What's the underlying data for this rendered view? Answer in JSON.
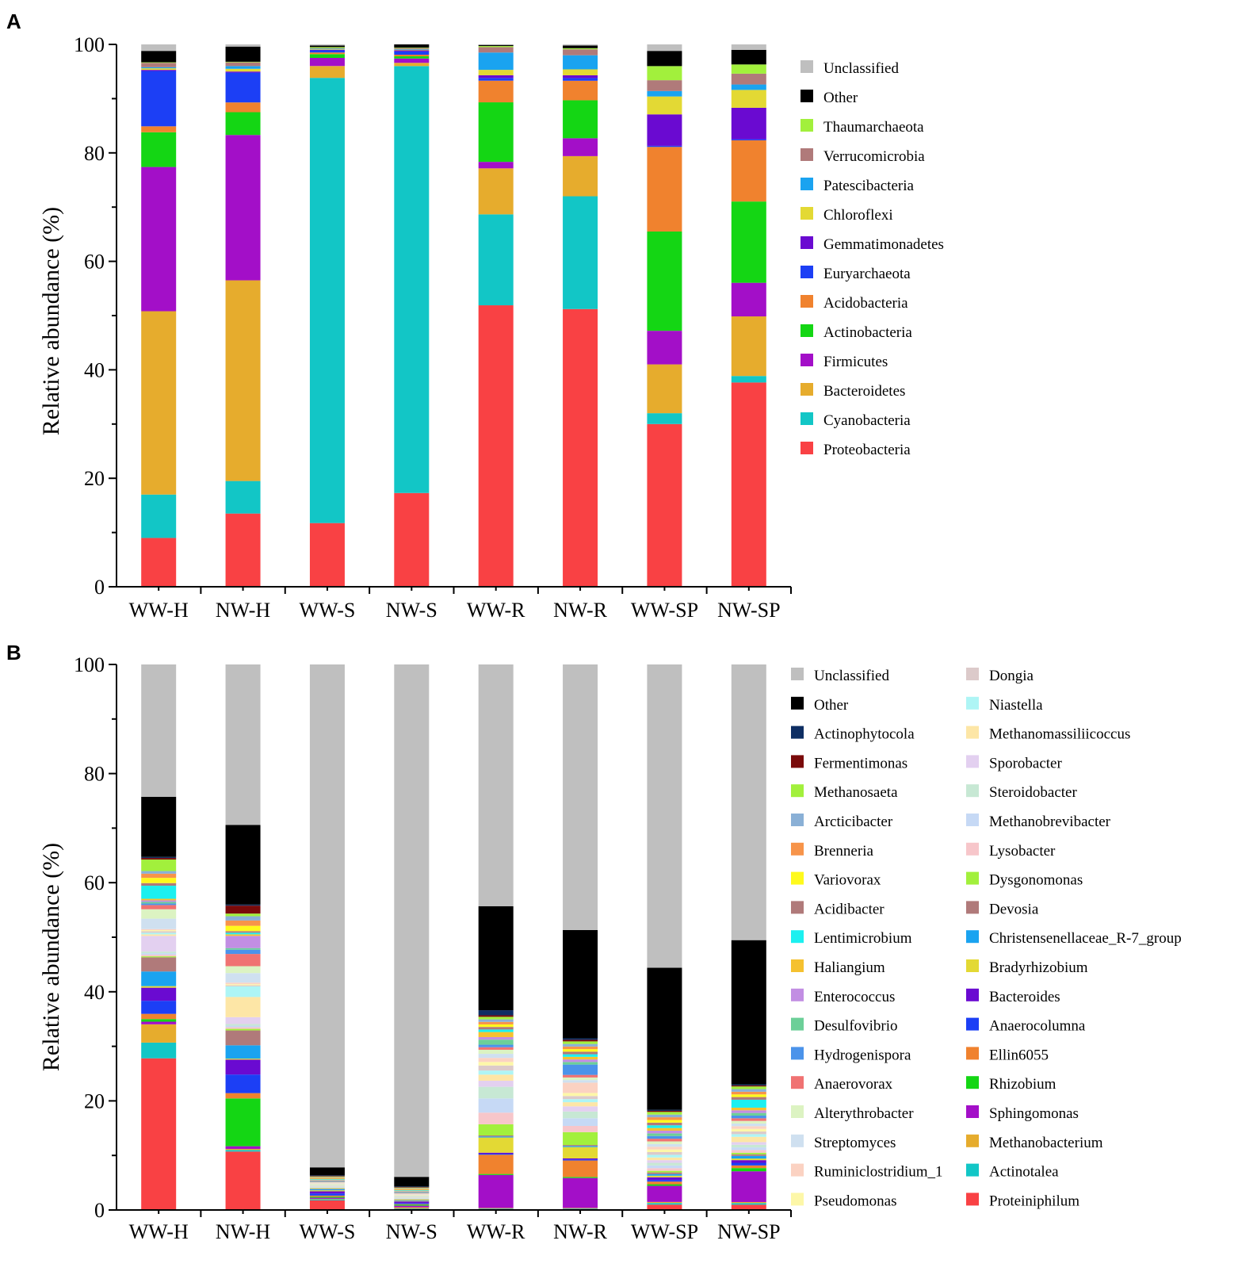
{
  "chart_data": [
    {
      "type": "bar",
      "stacked": true,
      "panel": "A",
      "ylabel": "Relative abundance (%)",
      "xlabel": "",
      "ylim": [
        0,
        100
      ],
      "yticks": [
        "0",
        "20",
        "40",
        "60",
        "80",
        "100"
      ],
      "categories": [
        "WW-H",
        "NW-H",
        "WW-S",
        "NW-S",
        "WW-R",
        "NW-R",
        "WW-SP",
        "NW-SP"
      ],
      "legend_position": "right",
      "series": [
        {
          "name": "Proteobacteria",
          "color": "#f94144",
          "values": [
            9,
            13.5,
            11.8,
            17.3,
            52,
            51.2,
            30,
            37.7
          ]
        },
        {
          "name": "Cyanobacteria",
          "color": "#12c6c6",
          "values": [
            8,
            6,
            82.5,
            78.8,
            16.8,
            20.8,
            2,
            1.2
          ]
        },
        {
          "name": "Bacteroidetes",
          "color": "#e6ac2d",
          "values": [
            33.8,
            37,
            2.2,
            0.6,
            8.5,
            7.4,
            9,
            11
          ]
        },
        {
          "name": "Firmicutes",
          "color": "#a30fc8",
          "values": [
            26.6,
            26.8,
            1.5,
            0.8,
            1.2,
            3.3,
            6.2,
            6.2
          ]
        },
        {
          "name": "Actinobacteria",
          "color": "#14d614",
          "values": [
            6.4,
            4.2,
            0.7,
            0.4,
            11,
            7,
            18.3,
            15
          ]
        },
        {
          "name": "Acidobacteria",
          "color": "#f0822e",
          "values": [
            1.1,
            1.8,
            0.3,
            0.3,
            4,
            3.6,
            15.6,
            11.3
          ]
        },
        {
          "name": "Euryarchaeota",
          "color": "#1c3ff5",
          "values": [
            10.2,
            5.5,
            0.4,
            0.6,
            0.5,
            0.5,
            0.2,
            0.2
          ]
        },
        {
          "name": "Gemmatimonadetes",
          "color": "#6a0ad1",
          "values": [
            0.2,
            0.2,
            0.1,
            0.2,
            0.5,
            0.5,
            5.8,
            5.8
          ]
        },
        {
          "name": "Chloroflexi",
          "color": "#e3d934",
          "values": [
            0.3,
            0.5,
            0.1,
            0.1,
            1,
            1.1,
            3.3,
            3.3
          ]
        },
        {
          "name": "Patescibacteria",
          "color": "#1aa3f0",
          "values": [
            0.2,
            0.5,
            0.1,
            0.1,
            3.2,
            2.6,
            1,
            1
          ]
        },
        {
          "name": "Verrucomicrobia",
          "color": "#b07a7a",
          "values": [
            0.8,
            0.7,
            0.1,
            0.2,
            1,
            1.1,
            2,
            2
          ]
        },
        {
          "name": "Thaumarchaeota",
          "color": "#a2f03c",
          "values": [
            0.1,
            0.1,
            0.2,
            0.1,
            0.2,
            0.2,
            2.6,
            1.7
          ]
        },
        {
          "name": "Other",
          "color": "#000000",
          "values": [
            2.1,
            2.8,
            0.3,
            0.6,
            0.2,
            0.5,
            2.8,
            2.7
          ]
        },
        {
          "name": "Unclassified",
          "color": "#bfbfbf",
          "values": [
            1.2,
            0.4,
            0.2,
            0,
            0.1,
            0.2,
            1.2,
            1
          ]
        }
      ]
    },
    {
      "type": "bar",
      "stacked": true,
      "panel": "B",
      "ylabel": "Relative abundance (%)",
      "xlabel": "",
      "ylim": [
        0,
        100
      ],
      "yticks": [
        "0",
        "20",
        "40",
        "60",
        "80",
        "100"
      ],
      "categories": [
        "WW-H",
        "NW-H",
        "WW-S",
        "NW-S",
        "WW-R",
        "NW-R",
        "WW-SP",
        "NW-SP"
      ],
      "legend_position": "right",
      "series": [
        {
          "name": "Proteiniphilum",
          "color": "#f94144",
          "values": [
            29,
            11,
            1.8,
            0.2,
            0.2,
            0.2,
            1,
            1
          ]
        },
        {
          "name": "Actinotalea",
          "color": "#12c6c6",
          "values": [
            3,
            0.3,
            0.2,
            0.1,
            0.1,
            0.1,
            0.3,
            0.3
          ]
        },
        {
          "name": "Methanobacterium",
          "color": "#e6ac2d",
          "values": [
            3.5,
            0.2,
            0.1,
            0.2,
            0.1,
            0.1,
            0.2,
            0.2
          ]
        },
        {
          "name": "Sphingomonas",
          "color": "#a30fc8",
          "values": [
            0.5,
            0.5,
            0.2,
            0.3,
            6.5,
            5.8,
            3,
            5.8
          ]
        },
        {
          "name": "Rhizobium",
          "color": "#14d614",
          "values": [
            0.5,
            9,
            0.2,
            0.2,
            0.2,
            0.2,
            0.3,
            0.6
          ]
        },
        {
          "name": "Ellin6055",
          "color": "#f0822e",
          "values": [
            1,
            1,
            0.2,
            0.1,
            3.8,
            3.2,
            0.5,
            0.5
          ]
        },
        {
          "name": "Anaerocolumna",
          "color": "#1c3ff5",
          "values": [
            2.5,
            3.5,
            0.4,
            0.2,
            0.2,
            0.2,
            0.3,
            0.5
          ]
        },
        {
          "name": "Bacteroides",
          "color": "#6a0ad1",
          "values": [
            2.5,
            2.8,
            0.4,
            0.3,
            0.2,
            0.2,
            0.5,
            0.5
          ]
        },
        {
          "name": "Bradyrhizobium",
          "color": "#e3d934",
          "values": [
            0.3,
            0.2,
            0.2,
            0.1,
            3,
            2.2,
            0.3,
            0.3
          ]
        },
        {
          "name": "Christensenellaceae_R-7_group",
          "color": "#1aa3f0",
          "values": [
            2.8,
            2.5,
            0.2,
            0.1,
            0.2,
            0.2,
            0.3,
            0.5
          ]
        },
        {
          "name": "Devosia",
          "color": "#b07a7a",
          "values": [
            2.7,
            2.8,
            0.1,
            0.1,
            0.2,
            0.2,
            0.3,
            0.3
          ]
        },
        {
          "name": "Dysgonomonas",
          "color": "#a2f03c",
          "values": [
            0.2,
            0.3,
            0.1,
            0.1,
            2.2,
            2.5,
            0.3,
            0.3
          ]
        },
        {
          "name": "Lysobacter",
          "color": "#f7c6ca",
          "values": [
            0.3,
            0.3,
            0.1,
            0.1,
            2.3,
            1.2,
            0.5,
            0.5
          ]
        },
        {
          "name": "Methanobrevibacter",
          "color": "#c6d9f5",
          "values": [
            0.3,
            0.3,
            0.1,
            0.1,
            2.8,
            1.5,
            0.5,
            0.5
          ]
        },
        {
          "name": "Steroidobacter",
          "color": "#c7e8d4",
          "values": [
            0.3,
            0.3,
            0.1,
            0.1,
            2.3,
            1.3,
            0.5,
            0.5
          ]
        },
        {
          "name": "Sporobacter",
          "color": "#e3d0f0",
          "values": [
            3,
            1.3,
            0.1,
            0.1,
            1.2,
            1,
            0.5,
            0.5
          ]
        },
        {
          "name": "Methanomassiliicoccus",
          "color": "#fde6a6",
          "values": [
            0.3,
            3.8,
            0.1,
            0.1,
            1.2,
            0.8,
            0.5,
            1
          ]
        },
        {
          "name": "Niastella",
          "color": "#aef5f5",
          "values": [
            0.3,
            2,
            0.1,
            0.1,
            0.8,
            0.6,
            0.5,
            0.5
          ]
        },
        {
          "name": "Dongia",
          "color": "#dccaca",
          "values": [
            0.3,
            0.2,
            0.1,
            0.1,
            1,
            0.6,
            0.5,
            0.5
          ]
        },
        {
          "name": "Pseudomonas",
          "color": "#fdf7a8",
          "values": [
            0.2,
            0.2,
            0.1,
            0.1,
            0.7,
            0.6,
            0.5,
            0.5
          ]
        },
        {
          "name": "Ruminiclostridium_1",
          "color": "#fbd2c2",
          "values": [
            0.2,
            0.3,
            0.1,
            0.1,
            0.8,
            2,
            0.5,
            0.5
          ]
        },
        {
          "name": "Streptomyces",
          "color": "#cfe0f0",
          "values": [
            2,
            1.8,
            0.1,
            0.1,
            0.8,
            0.5,
            0.5,
            0.5
          ]
        },
        {
          "name": "Alterythrobacter",
          "color": "#dcf3c2",
          "values": [
            1.8,
            1.3,
            0.1,
            0.1,
            0.8,
            0.5,
            0.5,
            0.5
          ]
        },
        {
          "name": "Anaerovorax",
          "color": "#f07272",
          "values": [
            0.8,
            2.3,
            0.1,
            0.1,
            0.5,
            0.5,
            0.5,
            0.5
          ]
        },
        {
          "name": "Hydrogenispora",
          "color": "#4b93ea",
          "values": [
            0.3,
            0.8,
            0.1,
            0.1,
            0.5,
            2,
            0.5,
            0.5
          ]
        },
        {
          "name": "Desulfovibrio",
          "color": "#6ccf98",
          "values": [
            0.3,
            0.3,
            0.1,
            0.1,
            1,
            0.5,
            0.5,
            0.5
          ]
        },
        {
          "name": "Enterococcus",
          "color": "#c28ee3",
          "values": [
            0.3,
            2.3,
            0.1,
            0.1,
            0.5,
            0.5,
            0.5,
            0.5
          ]
        },
        {
          "name": "Haliangium",
          "color": "#f5c130",
          "values": [
            0.3,
            0.3,
            0.1,
            0.1,
            1,
            0.5,
            0.5,
            0.5
          ]
        },
        {
          "name": "Lentimicrobium",
          "color": "#1cf0f0",
          "values": [
            2.5,
            0.3,
            0.1,
            0.1,
            0.5,
            0.5,
            0.5,
            1.5
          ]
        },
        {
          "name": "Acidibacter",
          "color": "#b07a7a",
          "values": [
            0.5,
            0.3,
            0.1,
            0.1,
            0.5,
            0.5,
            0.5,
            0.5
          ]
        },
        {
          "name": "Variovorax",
          "color": "#fffa1c",
          "values": [
            1,
            1,
            0.1,
            0.1,
            0.5,
            0.5,
            0.5,
            0.5
          ]
        },
        {
          "name": "Brenneria",
          "color": "#f7944a",
          "values": [
            0.8,
            1,
            0.1,
            0.1,
            0.5,
            0.5,
            0.5,
            0.5
          ]
        },
        {
          "name": "Arcticibacter",
          "color": "#8ab0d6",
          "values": [
            0.5,
            0.8,
            0.1,
            0.1,
            0.5,
            0.5,
            0.5,
            0.5
          ]
        },
        {
          "name": "Methanosaeta",
          "color": "#a2f03c",
          "values": [
            2.2,
            0.5,
            0.1,
            0.1,
            0.5,
            0.5,
            0.5,
            0.5
          ]
        },
        {
          "name": "Fermentimonas",
          "color": "#7a0a0a",
          "values": [
            0.3,
            1.5,
            0.1,
            0.1,
            0.3,
            0.3,
            0.2,
            0.2
          ]
        },
        {
          "name": "Actinophytocola",
          "color": "#0e2e63",
          "values": [
            0.2,
            0.2,
            0.1,
            0.1,
            1,
            0.3,
            0.2,
            0.2
          ]
        },
        {
          "name": "Other",
          "color": "#000000",
          "values": [
            11.5,
            15,
            1.5,
            1.8,
            20.5,
            21,
            26.5,
            27.2
          ]
        },
        {
          "name": "Unclassified",
          "color": "#bfbfbf",
          "values": [
            25.3,
            30.2,
            94.4,
            95.9,
            47.7,
            51.5,
            56.6,
            52
          ]
        }
      ],
      "legend_columns": [
        [
          "Unclassified",
          "Other",
          "Actinophytocola",
          "Fermentimonas",
          "Methanosaeta",
          "Arcticibacter",
          "Brenneria",
          "Variovorax",
          "Acidibacter",
          "Lentimicrobium",
          "Haliangium",
          "Enterococcus",
          "Desulfovibrio",
          "Hydrogenispora",
          "Anaerovorax",
          "Alterythrobacter",
          "Streptomyces",
          "Ruminiclostridium_1",
          "Pseudomonas"
        ],
        [
          "Dongia",
          "Niastella",
          "Methanomassiliicoccus",
          "Sporobacter",
          "Steroidobacter",
          "Methanobrevibacter",
          "Lysobacter",
          "Dysgonomonas",
          "Devosia",
          "Christensenellaceae_R-7_group",
          "Bradyrhizobium",
          "Bacteroides",
          "Anaerocolumna",
          "Ellin6055",
          "Rhizobium",
          "Sphingomonas",
          "Methanobacterium",
          "Actinotalea",
          "Proteiniphilum"
        ]
      ]
    }
  ]
}
